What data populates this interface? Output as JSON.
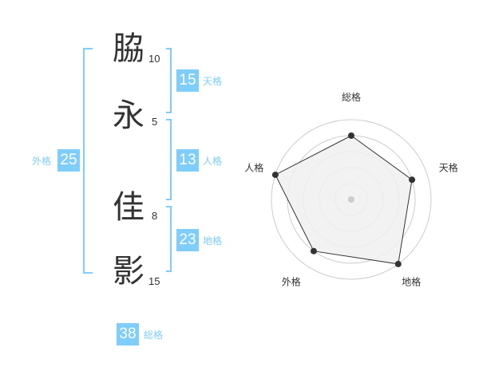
{
  "name": {
    "chars": [
      {
        "char": "脇",
        "strokes": "10"
      },
      {
        "char": "永",
        "strokes": "5"
      },
      {
        "char": "佳",
        "strokes": "8"
      },
      {
        "char": "影",
        "strokes": "15"
      }
    ]
  },
  "fortunes": {
    "tenkaku": {
      "label": "天格",
      "value": "15"
    },
    "jinkaku": {
      "label": "人格",
      "value": "13"
    },
    "chikaku": {
      "label": "地格",
      "value": "23"
    },
    "gaikaku": {
      "label": "外格",
      "value": "25"
    },
    "soukaku": {
      "label": "総格",
      "value": "38"
    }
  },
  "colors": {
    "accent": "#7fcdfb",
    "radar_fill": "#f0f0f0",
    "radar_line": "#333333",
    "grid": "#cccccc"
  },
  "chart_data": {
    "type": "radar",
    "axes": [
      "総格",
      "天格",
      "地格",
      "外格",
      "人格"
    ],
    "values": [
      4,
      4,
      5,
      4,
      5
    ],
    "range": [
      0,
      5
    ],
    "grid": true
  }
}
